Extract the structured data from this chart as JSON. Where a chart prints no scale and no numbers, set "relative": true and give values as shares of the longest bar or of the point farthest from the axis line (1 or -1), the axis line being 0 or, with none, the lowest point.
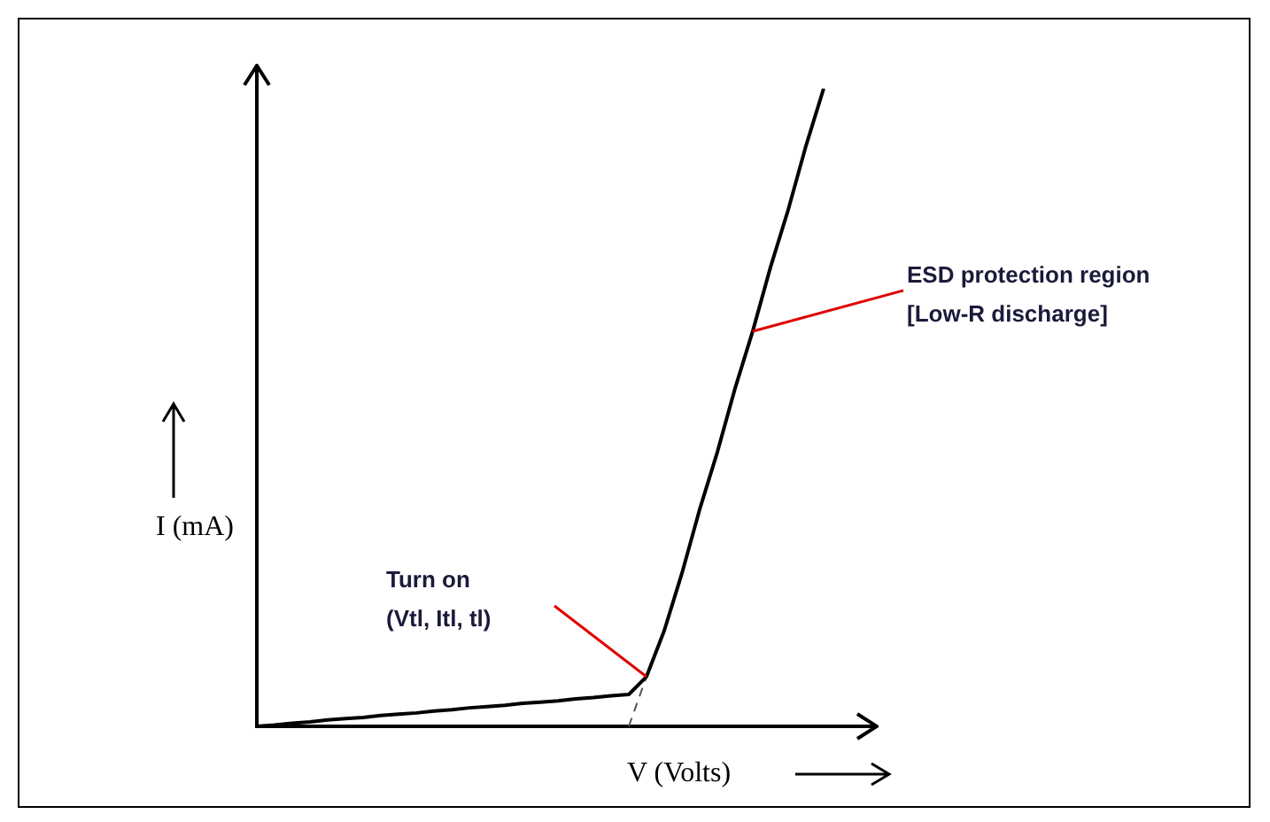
{
  "chart_data": {
    "type": "line",
    "relative": true,
    "xlabel": "V (Volts)",
    "ylabel": "I (mA)",
    "categories": [
      null,
      null,
      null,
      null,
      null,
      null,
      null,
      null,
      null,
      null,
      null,
      null,
      null,
      null,
      null,
      null,
      null,
      null,
      null,
      null,
      null,
      null,
      null,
      null,
      null,
      null,
      null,
      null,
      null,
      null,
      null,
      null,
      null,
      null,
      null
    ],
    "series": [
      {
        "color": "#000000",
        "values": [
          0,
          0.002,
          0.005,
          0.007,
          0.01,
          0.012,
          0.014,
          0.017,
          0.019,
          0.021,
          0.024,
          0.026,
          0.029,
          0.031,
          0.033,
          0.036,
          0.038,
          0.04,
          0.043,
          0.045,
          0.048,
          0.05,
          0.078,
          0.15,
          0.24,
          0.34,
          0.43,
          0.53,
          0.62,
          0.72,
          0.81,
          0.91,
          1.0,
          null,
          null
        ]
      },
      {
        "color": "#555555",
        "line_style": "dashed",
        "values": [
          null,
          null,
          null,
          null,
          null,
          null,
          null,
          null,
          null,
          null,
          null,
          null,
          null,
          null,
          null,
          null,
          null,
          null,
          null,
          null,
          null,
          0,
          0.078,
          null,
          null,
          null,
          null,
          null,
          null,
          null,
          null,
          null,
          null,
          null,
          null
        ]
      }
    ],
    "annotations": [
      "Turn on\n(Vtl, Itl, tl)",
      "ESD protection region\n[Low-R discharge]"
    ],
    "legend": false,
    "marker": "none"
  }
}
